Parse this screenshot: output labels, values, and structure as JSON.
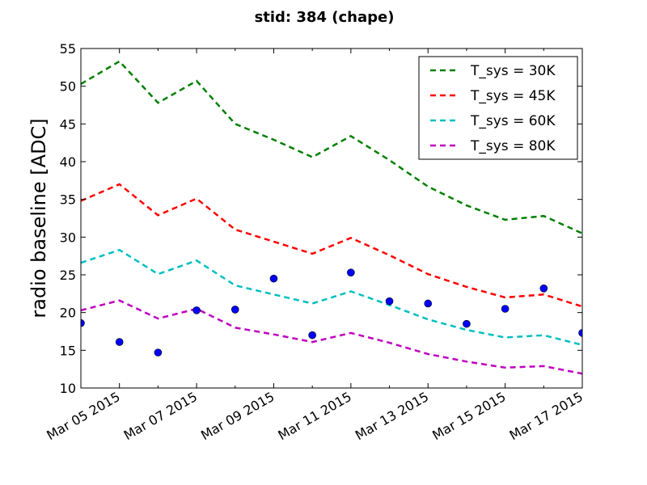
{
  "chart_data": {
    "type": "line",
    "title": "stid: 384 (chape)",
    "xlabel": "",
    "ylabel": "radio baseline [ADC]",
    "x_range": [
      "2015-03-04",
      "2015-03-17"
    ],
    "ylim": [
      10,
      55
    ],
    "y_ticks": [
      10,
      15,
      20,
      25,
      30,
      35,
      40,
      45,
      50,
      55
    ],
    "x_ticks": [
      {
        "date": "2015-03-05",
        "label": "Mar 05 2015"
      },
      {
        "date": "2015-03-07",
        "label": "Mar 07 2015"
      },
      {
        "date": "2015-03-09",
        "label": "Mar 09 2015"
      },
      {
        "date": "2015-03-11",
        "label": "Mar 11 2015"
      },
      {
        "date": "2015-03-13",
        "label": "Mar 13 2015"
      },
      {
        "date": "2015-03-15",
        "label": "Mar 15 2015"
      },
      {
        "date": "2015-03-17",
        "label": "Mar 17 2015"
      }
    ],
    "x": [
      "2015-03-04",
      "2015-03-05",
      "2015-03-06",
      "2015-03-07",
      "2015-03-08",
      "2015-03-09",
      "2015-03-10",
      "2015-03-11",
      "2015-03-12",
      "2015-03-13",
      "2015-03-14",
      "2015-03-15",
      "2015-03-16",
      "2015-03-17"
    ],
    "grid": false,
    "legend_position": "top-right",
    "series": [
      {
        "name": "T_sys = 30K",
        "color": "#008000",
        "style": "dashed",
        "values": [
          50.3,
          53.3,
          47.8,
          50.7,
          45.0,
          42.9,
          40.6,
          43.4,
          40.2,
          36.7,
          34.2,
          32.3,
          32.8,
          30.5
        ]
      },
      {
        "name": "T_sys = 45K",
        "color": "#ff0000",
        "style": "dashed",
        "values": [
          34.8,
          37.0,
          32.9,
          35.1,
          31.0,
          29.4,
          27.8,
          29.9,
          27.6,
          25.1,
          23.4,
          22.0,
          22.4,
          20.8
        ]
      },
      {
        "name": "T_sys = 60K",
        "color": "#00bfbf",
        "style": "dashed",
        "values": [
          26.6,
          28.3,
          25.1,
          26.9,
          23.6,
          22.4,
          21.2,
          22.8,
          21.0,
          19.1,
          17.7,
          16.7,
          17.0,
          15.7
        ]
      },
      {
        "name": "T_sys = 80K",
        "color": "#bf00bf",
        "style": "dashed",
        "values": [
          20.3,
          21.6,
          19.2,
          20.5,
          18.0,
          17.1,
          16.1,
          17.3,
          16.0,
          14.5,
          13.5,
          12.7,
          12.9,
          11.9
        ]
      }
    ],
    "points": {
      "color": "#0000ff",
      "values": [
        18.6,
        16.1,
        14.7,
        20.3,
        20.4,
        24.5,
        17.0,
        25.3,
        21.5,
        21.2,
        18.5,
        20.5,
        23.2,
        17.3
      ]
    }
  }
}
